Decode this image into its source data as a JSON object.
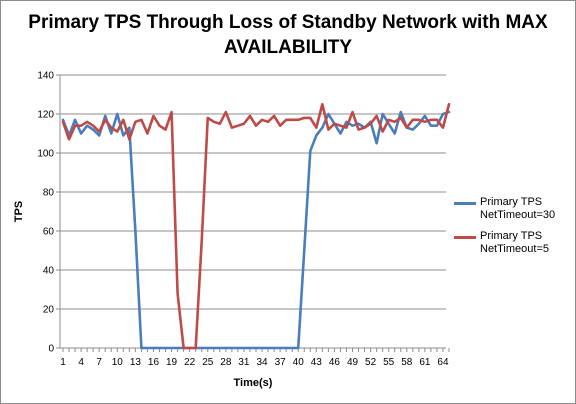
{
  "chart_data": {
    "type": "line",
    "title": "Primary TPS Through Loss of Standby Network with MAX AVAILABILITY",
    "xlabel": "Time(s)",
    "ylabel": "TPS",
    "ylim": [
      0,
      140
    ],
    "yticks": [
      0,
      20,
      40,
      60,
      80,
      100,
      120,
      140
    ],
    "xlim": [
      1,
      65
    ],
    "xticks": [
      1,
      4,
      7,
      10,
      13,
      16,
      19,
      22,
      25,
      28,
      31,
      34,
      37,
      40,
      43,
      46,
      49,
      52,
      55,
      58,
      61,
      64
    ],
    "grid": "horizontal major",
    "legend_position": "right",
    "x": [
      1,
      2,
      3,
      4,
      5,
      6,
      7,
      8,
      9,
      10,
      11,
      12,
      13,
      14,
      15,
      16,
      17,
      18,
      19,
      20,
      21,
      22,
      23,
      24,
      25,
      26,
      27,
      28,
      29,
      30,
      31,
      32,
      33,
      34,
      35,
      36,
      37,
      38,
      39,
      40,
      41,
      42,
      43,
      44,
      45,
      46,
      47,
      48,
      49,
      50,
      51,
      52,
      53,
      54,
      55,
      56,
      57,
      58,
      59,
      60,
      61,
      62,
      63,
      64,
      65
    ],
    "series": [
      {
        "name": "Primary TPS NetTimeout=30",
        "color": "#4a7ebb",
        "values": [
          117,
          109,
          117,
          110,
          114,
          112,
          109,
          119,
          110,
          120,
          109,
          113,
          60,
          0,
          0,
          0,
          0,
          0,
          0,
          0,
          0,
          0,
          0,
          0,
          0,
          0,
          0,
          0,
          0,
          0,
          0,
          0,
          0,
          0,
          0,
          0,
          0,
          0,
          0,
          0,
          50,
          101,
          109,
          113,
          120,
          115,
          110,
          116,
          114,
          115,
          113,
          116,
          105,
          120,
          115,
          110,
          121,
          113,
          112,
          115,
          119,
          114,
          114,
          120,
          121
        ]
      },
      {
        "name": "Primary TPS NetTimeout=5",
        "color": "#be4b48",
        "values": [
          116,
          107,
          114,
          114,
          116,
          114,
          111,
          117,
          113,
          111,
          117,
          107,
          116,
          117,
          110,
          119,
          114,
          112,
          121,
          28,
          0,
          0,
          0,
          55,
          118,
          116,
          115,
          121,
          113,
          114,
          115,
          119,
          114,
          117,
          116,
          119,
          114,
          117,
          117,
          117,
          118,
          118,
          113,
          125,
          112,
          115,
          114,
          113,
          121,
          112,
          113,
          115,
          119,
          111,
          117,
          116,
          118,
          113,
          117,
          117,
          116,
          117,
          117,
          113,
          125
        ]
      }
    ]
  }
}
